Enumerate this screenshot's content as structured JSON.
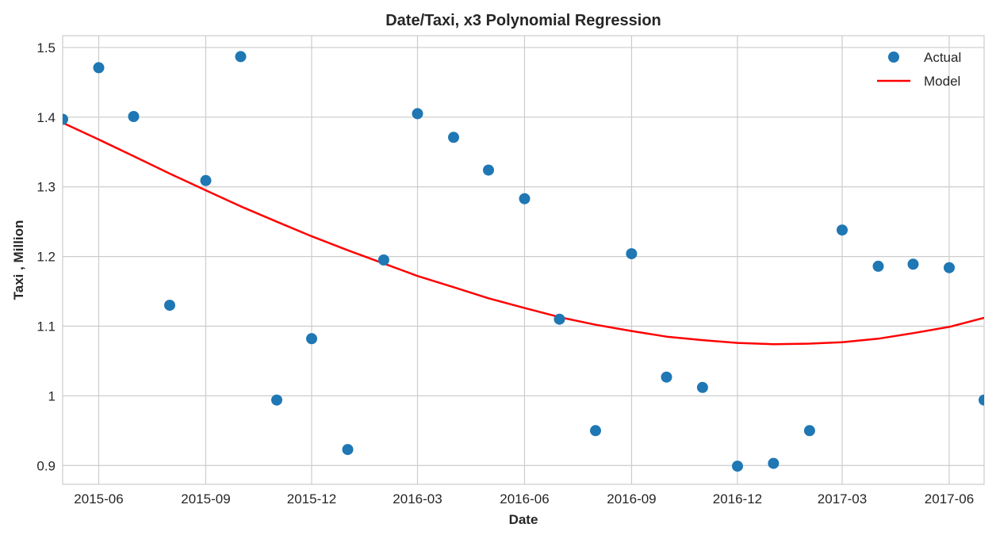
{
  "chart_data": {
    "type": "scatter",
    "title": "Date/Taxi, x3 Polynomial Regression",
    "xlabel": "Date",
    "ylabel": "Taxi , Million",
    "xlim": [
      "2015-05-01",
      "2017-07-01"
    ],
    "ylim": [
      0.873,
      1.517
    ],
    "x_ticks": [
      "2015-06",
      "2015-09",
      "2015-12",
      "2016-03",
      "2016-06",
      "2016-09",
      "2016-12",
      "2017-03",
      "2017-06"
    ],
    "y_ticks": [
      "0.9",
      "1",
      "1.1",
      "1.2",
      "1.3",
      "1.4",
      "1.5"
    ],
    "grid": true,
    "legend_position": "top-right",
    "series": [
      {
        "name": "Actual",
        "kind": "markers",
        "color": "#1f77b4",
        "points": [
          {
            "x": "2015-05-01",
            "y": 1.397
          },
          {
            "x": "2015-06-01",
            "y": 1.471
          },
          {
            "x": "2015-07-01",
            "y": 1.401
          },
          {
            "x": "2015-08-01",
            "y": 1.13
          },
          {
            "x": "2015-09-01",
            "y": 1.309
          },
          {
            "x": "2015-10-01",
            "y": 1.487
          },
          {
            "x": "2015-11-01",
            "y": 0.994
          },
          {
            "x": "2015-12-01",
            "y": 1.082
          },
          {
            "x": "2016-01-01",
            "y": 0.923
          },
          {
            "x": "2016-02-01",
            "y": 1.195
          },
          {
            "x": "2016-03-01",
            "y": 1.405
          },
          {
            "x": "2016-04-01",
            "y": 1.371
          },
          {
            "x": "2016-05-01",
            "y": 1.324
          },
          {
            "x": "2016-06-01",
            "y": 1.283
          },
          {
            "x": "2016-07-01",
            "y": 1.11
          },
          {
            "x": "2016-08-01",
            "y": 0.95
          },
          {
            "x": "2016-09-01",
            "y": 1.204
          },
          {
            "x": "2016-10-01",
            "y": 1.027
          },
          {
            "x": "2016-11-01",
            "y": 1.012
          },
          {
            "x": "2016-12-01",
            "y": 0.899
          },
          {
            "x": "2017-01-01",
            "y": 0.903
          },
          {
            "x": "2017-02-01",
            "y": 0.95
          },
          {
            "x": "2017-03-01",
            "y": 1.238
          },
          {
            "x": "2017-04-01",
            "y": 1.186
          },
          {
            "x": "2017-05-01",
            "y": 1.189
          },
          {
            "x": "2017-06-01",
            "y": 1.184
          },
          {
            "x": "2017-07-01",
            "y": 0.994
          }
        ]
      },
      {
        "name": "Model",
        "kind": "line",
        "color": "#ff0000",
        "points": [
          {
            "x": "2015-05-01",
            "y": 1.392
          },
          {
            "x": "2015-06-01",
            "y": 1.368
          },
          {
            "x": "2015-07-01",
            "y": 1.344
          },
          {
            "x": "2015-08-01",
            "y": 1.319
          },
          {
            "x": "2015-09-01",
            "y": 1.295
          },
          {
            "x": "2015-10-01",
            "y": 1.272
          },
          {
            "x": "2015-11-01",
            "y": 1.25
          },
          {
            "x": "2015-12-01",
            "y": 1.229
          },
          {
            "x": "2016-01-01",
            "y": 1.209
          },
          {
            "x": "2016-02-01",
            "y": 1.19
          },
          {
            "x": "2016-03-01",
            "y": 1.172
          },
          {
            "x": "2016-04-01",
            "y": 1.156
          },
          {
            "x": "2016-05-01",
            "y": 1.14
          },
          {
            "x": "2016-06-01",
            "y": 1.126
          },
          {
            "x": "2016-07-01",
            "y": 1.113
          },
          {
            "x": "2016-08-01",
            "y": 1.102
          },
          {
            "x": "2016-09-01",
            "y": 1.093
          },
          {
            "x": "2016-10-01",
            "y": 1.085
          },
          {
            "x": "2016-11-01",
            "y": 1.08
          },
          {
            "x": "2016-12-01",
            "y": 1.076
          },
          {
            "x": "2017-01-01",
            "y": 1.074
          },
          {
            "x": "2017-02-01",
            "y": 1.075
          },
          {
            "x": "2017-03-01",
            "y": 1.077
          },
          {
            "x": "2017-04-01",
            "y": 1.082
          },
          {
            "x": "2017-05-01",
            "y": 1.09
          },
          {
            "x": "2017-06-01",
            "y": 1.099
          },
          {
            "x": "2017-07-01",
            "y": 1.112
          }
        ]
      }
    ]
  }
}
